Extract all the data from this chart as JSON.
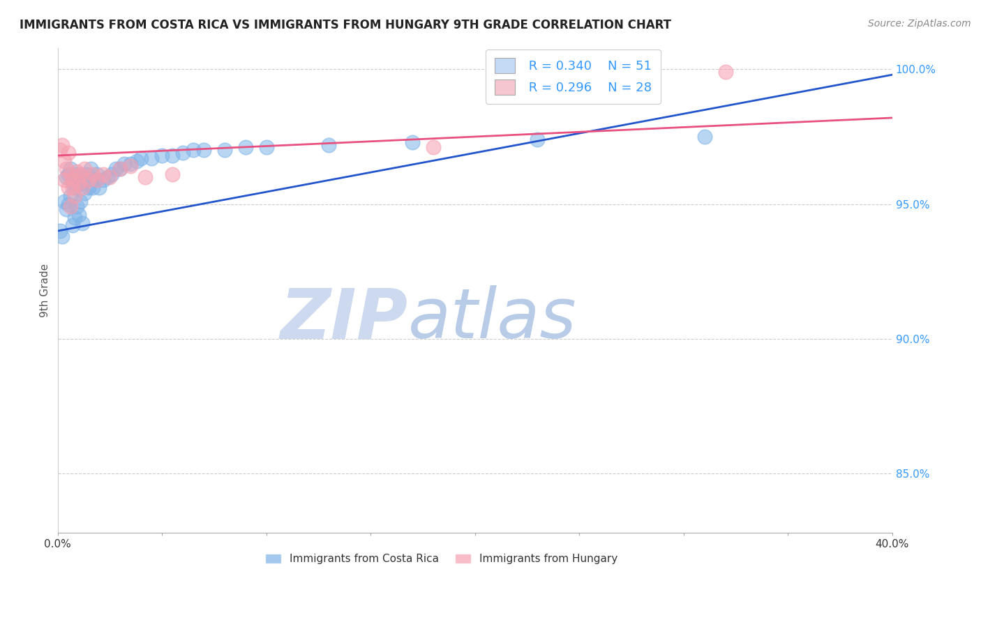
{
  "title": "IMMIGRANTS FROM COSTA RICA VS IMMIGRANTS FROM HUNGARY 9TH GRADE CORRELATION CHART",
  "source_text": "Source: ZipAtlas.com",
  "ylabel_label": "9th Grade",
  "xlim": [
    0.0,
    0.4
  ],
  "ylim": [
    0.828,
    1.008
  ],
  "yticks": [
    0.85,
    0.9,
    0.95,
    1.0
  ],
  "yticklabels": [
    "85.0%",
    "90.0%",
    "95.0%",
    "100.0%"
  ],
  "costa_rica_R": 0.34,
  "costa_rica_N": 51,
  "hungary_R": 0.296,
  "hungary_N": 28,
  "color_costa_rica": "#7eb3e8",
  "color_hungary": "#f5a0b0",
  "color_trendline_costa_rica": "#2255cc",
  "color_trendline_hungary": "#e85080",
  "watermark_zip": "ZIP",
  "watermark_atlas": "atlas",
  "watermark_color_zip": "#ccd9ee",
  "watermark_color_atlas": "#b8cce8",
  "legend_box_color_cr": "#c5daf5",
  "legend_box_color_hu": "#f5c5d0",
  "costa_rica_x": [
    0.001,
    0.002,
    0.003,
    0.004,
    0.004,
    0.005,
    0.005,
    0.006,
    0.006,
    0.007,
    0.007,
    0.008,
    0.008,
    0.009,
    0.009,
    0.01,
    0.01,
    0.011,
    0.011,
    0.012,
    0.012,
    0.013,
    0.014,
    0.015,
    0.016,
    0.017,
    0.018,
    0.019,
    0.02,
    0.022,
    0.024,
    0.026,
    0.028,
    0.03,
    0.032,
    0.035,
    0.038,
    0.04,
    0.045,
    0.05,
    0.055,
    0.06,
    0.065,
    0.07,
    0.08,
    0.09,
    0.1,
    0.13,
    0.17,
    0.23,
    0.31
  ],
  "costa_rica_y": [
    0.94,
    0.938,
    0.951,
    0.96,
    0.948,
    0.961,
    0.95,
    0.963,
    0.953,
    0.942,
    0.958,
    0.945,
    0.956,
    0.949,
    0.961,
    0.959,
    0.946,
    0.96,
    0.951,
    0.958,
    0.943,
    0.954,
    0.961,
    0.956,
    0.963,
    0.956,
    0.959,
    0.961,
    0.956,
    0.959,
    0.96,
    0.961,
    0.963,
    0.963,
    0.965,
    0.965,
    0.966,
    0.967,
    0.967,
    0.968,
    0.968,
    0.969,
    0.97,
    0.97,
    0.97,
    0.971,
    0.971,
    0.972,
    0.973,
    0.974,
    0.975
  ],
  "hungary_x": [
    0.001,
    0.002,
    0.003,
    0.003,
    0.004,
    0.005,
    0.005,
    0.006,
    0.006,
    0.007,
    0.007,
    0.008,
    0.009,
    0.01,
    0.011,
    0.012,
    0.013,
    0.015,
    0.017,
    0.019,
    0.022,
    0.025,
    0.03,
    0.035,
    0.042,
    0.055,
    0.18,
    0.32
  ],
  "hungary_y": [
    0.97,
    0.972,
    0.966,
    0.959,
    0.963,
    0.969,
    0.956,
    0.961,
    0.949,
    0.956,
    0.959,
    0.953,
    0.962,
    0.958,
    0.961,
    0.956,
    0.963,
    0.959,
    0.961,
    0.959,
    0.961,
    0.96,
    0.963,
    0.964,
    0.96,
    0.961,
    0.971,
    0.999
  ],
  "trendline_cr_x0": 0.0,
  "trendline_cr_y0": 0.94,
  "trendline_cr_x1": 0.4,
  "trendline_cr_y1": 0.998,
  "trendline_hu_x0": 0.0,
  "trendline_hu_y0": 0.968,
  "trendline_hu_x1": 0.4,
  "trendline_hu_y1": 0.982
}
